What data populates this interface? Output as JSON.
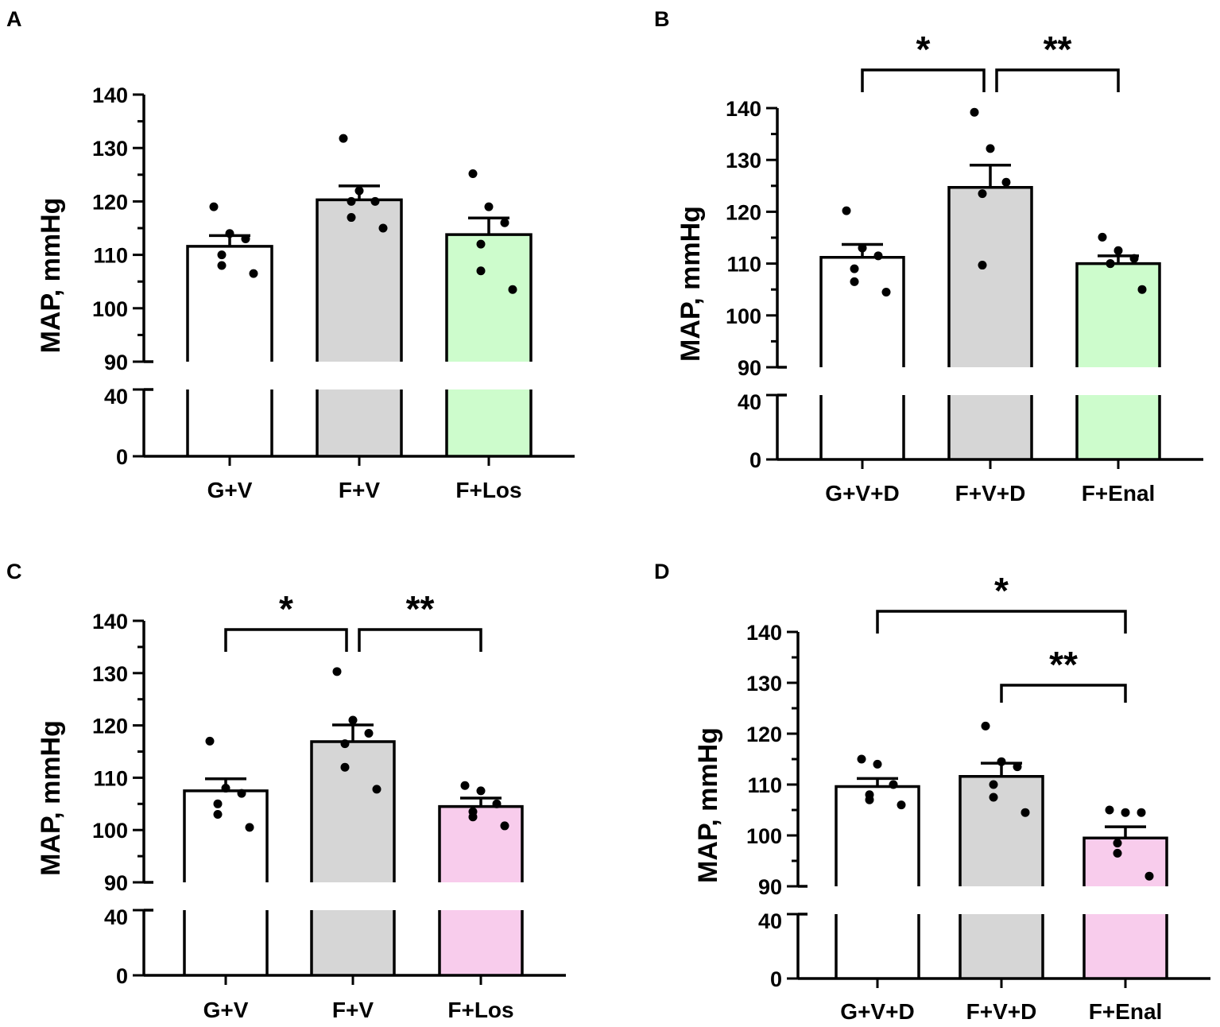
{
  "figure": {
    "colors": {
      "axis": "#000000",
      "vehicle_bar": "#ffffff",
      "fvehicle_bar": "#d6d6d6",
      "treatment_green": "#cdfccc",
      "treatment_pink": "#f8ccec",
      "dot": "#000000"
    }
  },
  "chart_data": [
    {
      "panel": "A",
      "type": "bar",
      "ylabel": "MAP, mmHg",
      "y_ticks_upper": [
        "90",
        "100",
        "110",
        "120",
        "130",
        "140"
      ],
      "y_ticks_lower": [
        "0",
        "40"
      ],
      "ylim_upper": [
        90,
        140
      ],
      "ylim_lower": [
        0,
        40
      ],
      "axis_break": [
        40,
        90
      ],
      "categories": [
        "G+V",
        "F+V",
        "F+Los"
      ],
      "means": [
        111.6,
        120.3,
        113.8
      ],
      "sem": [
        2.0,
        2.6,
        3.1
      ],
      "points": [
        [
          119,
          114,
          113,
          110,
          108,
          106.5
        ],
        [
          131.8,
          122,
          120,
          120,
          117,
          115
        ],
        [
          125.2,
          119,
          116,
          112,
          107,
          103.5
        ]
      ],
      "fill_keys": [
        "vehicle_bar",
        "fvehicle_bar",
        "treatment_green"
      ],
      "brackets": []
    },
    {
      "panel": "B",
      "type": "bar",
      "ylabel": "MAP, mmHg",
      "y_ticks_upper": [
        "90",
        "100",
        "110",
        "120",
        "130",
        "140"
      ],
      "y_ticks_lower": [
        "0",
        "40"
      ],
      "ylim_upper": [
        90,
        140
      ],
      "ylim_lower": [
        0,
        40
      ],
      "axis_break": [
        40,
        90
      ],
      "categories": [
        "G+V+D",
        "F+V+D",
        "F+Enal"
      ],
      "means": [
        111.2,
        124.7,
        110.0
      ],
      "sem": [
        2.5,
        4.3,
        1.5
      ],
      "points": [
        [
          120.2,
          113,
          111.5,
          109,
          106.5,
          104.5
        ],
        [
          139.2,
          132.2,
          125.7,
          123.5,
          109.7
        ],
        [
          115.1,
          112.5,
          111,
          110,
          110,
          105
        ]
      ],
      "fill_keys": [
        "vehicle_bar",
        "fvehicle_bar",
        "treatment_green"
      ],
      "brackets": [
        {
          "from": 0,
          "to": 1,
          "label": "*"
        },
        {
          "from": 1,
          "to": 2,
          "label": "**"
        }
      ]
    },
    {
      "panel": "C",
      "type": "bar",
      "ylabel": "MAP, mmHg",
      "y_ticks_upper": [
        "90",
        "100",
        "110",
        "120",
        "130",
        "140"
      ],
      "y_ticks_lower": [
        "0",
        "40"
      ],
      "ylim_upper": [
        90,
        140
      ],
      "ylim_lower": [
        0,
        40
      ],
      "axis_break": [
        40,
        90
      ],
      "categories": [
        "G+V",
        "F+V",
        "F+Los"
      ],
      "means": [
        107.5,
        116.9,
        104.5
      ],
      "sem": [
        2.3,
        3.2,
        1.6
      ],
      "points": [
        [
          117,
          108,
          107,
          105,
          103,
          100.5
        ],
        [
          130.3,
          121,
          118.5,
          116.5,
          112,
          107.8
        ],
        [
          108.5,
          107.5,
          105,
          103.5,
          102.5,
          100.8
        ]
      ],
      "fill_keys": [
        "vehicle_bar",
        "fvehicle_bar",
        "treatment_pink"
      ],
      "brackets": [
        {
          "from": 0,
          "to": 1,
          "label": "*"
        },
        {
          "from": 1,
          "to": 2,
          "label": "**"
        }
      ]
    },
    {
      "panel": "D",
      "type": "bar",
      "ylabel": "MAP, mmHg",
      "y_ticks_upper": [
        "90",
        "100",
        "110",
        "120",
        "130",
        "140"
      ],
      "y_ticks_lower": [
        "0",
        "40"
      ],
      "ylim_upper": [
        90,
        140
      ],
      "ylim_lower": [
        0,
        40
      ],
      "axis_break": [
        40,
        90
      ],
      "categories": [
        "G+V+D",
        "F+V+D",
        "F+Enal"
      ],
      "means": [
        109.6,
        111.6,
        99.5
      ],
      "sem": [
        1.6,
        2.6,
        2.2
      ],
      "points": [
        [
          115,
          114,
          110,
          108,
          107,
          106
        ],
        [
          121.5,
          114.5,
          113.5,
          110,
          107.5,
          104.5
        ],
        [
          105,
          104.5,
          104.5,
          98.5,
          96.5,
          92
        ]
      ],
      "fill_keys": [
        "vehicle_bar",
        "fvehicle_bar",
        "treatment_pink"
      ],
      "brackets": [
        {
          "from": 0,
          "to": 2,
          "label": "*"
        },
        {
          "from": 1,
          "to": 2,
          "label": "**"
        }
      ]
    }
  ]
}
